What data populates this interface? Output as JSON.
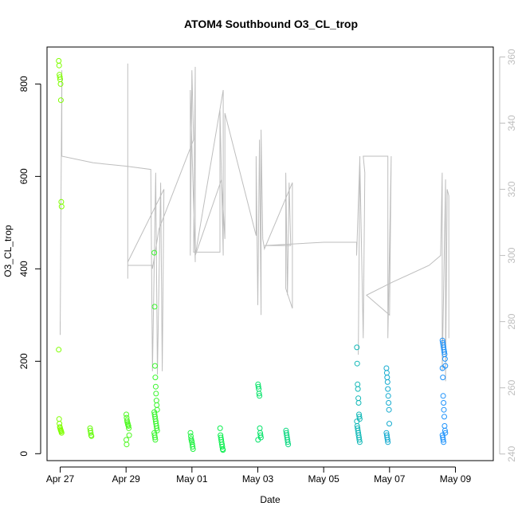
{
  "chart_data": {
    "type": "scatter",
    "title": "ATOM4 Southbound O3_CL_trop",
    "xlabel": "Date",
    "ylabel": "O3_CL_trop",
    "x_ticks": [
      "Apr 27",
      "Apr 29",
      "May 01",
      "May 03",
      "May 05",
      "May 07",
      "May 09"
    ],
    "y_ticks": [
      0,
      200,
      400,
      600,
      800
    ],
    "y2_ticks": [
      240,
      260,
      280,
      300,
      320,
      340,
      360
    ],
    "xlim": [
      26.6,
      40.15
    ],
    "ylim": [
      -15,
      880
    ],
    "y2lim": [
      238,
      363
    ],
    "grid": false,
    "legend": "none",
    "colors": {
      "axis": "#000000",
      "right_axis": "#bebebe",
      "trajectory_line": "#bebebe",
      "point_start": "#7fff00",
      "point_middle": "#00ee55",
      "point_end": "#1e90ff"
    },
    "series": [
      {
        "type": "scatter",
        "axis": "left",
        "clusters": [
          {
            "x": 27.0,
            "values": [
              850,
              840,
              820,
              815,
              810,
              800,
              765,
              545,
              535,
              225,
              75,
              65,
              58,
              55,
              52,
              50,
              48,
              45
            ]
          },
          {
            "x": 27.95,
            "values": [
              55,
              50,
              45,
              40,
              38
            ]
          },
          {
            "x": 29.05,
            "values": [
              85,
              78,
              72,
              68,
              65,
              62,
              60,
              55,
              40,
              30,
              20
            ]
          },
          {
            "x": 29.9,
            "values": [
              435,
              318,
              190,
              165,
              145,
              130,
              115,
              105,
              95,
              90,
              85,
              80,
              75,
              70,
              65,
              60,
              55,
              50,
              45,
              40,
              35,
              30
            ]
          },
          {
            "x": 31.0,
            "values": [
              45,
              38,
              32,
              28,
              25,
              20,
              15,
              10
            ]
          },
          {
            "x": 31.9,
            "values": [
              55,
              40,
              35,
              30,
              25,
              20,
              15,
              10,
              8
            ]
          },
          {
            "x": 33.05,
            "values": [
              150,
              145,
              140,
              130,
              125,
              55,
              45,
              40,
              35,
              30
            ]
          },
          {
            "x": 33.9,
            "values": [
              50,
              45,
              40,
              35,
              30,
              25,
              20
            ]
          },
          {
            "x": 36.05,
            "values": [
              230,
              195,
              150,
              140,
              120,
              110,
              85,
              80,
              75,
              70,
              60,
              55,
              50,
              45,
              40,
              35,
              30,
              25
            ]
          },
          {
            "x": 36.95,
            "values": [
              185,
              175,
              165,
              155,
              140,
              125,
              110,
              95,
              65,
              45,
              40,
              35,
              30,
              25
            ]
          },
          {
            "x": 38.65,
            "values": [
              245,
              240,
              235,
              230,
              225,
              220,
              215,
              205,
              190,
              185,
              165,
              125,
              110,
              95,
              80,
              60,
              50,
              45,
              40,
              35,
              30,
              25
            ]
          }
        ]
      },
      {
        "type": "line",
        "axis": "right",
        "points": [
          [
            27.0,
            280
          ],
          [
            27.0,
            276
          ],
          [
            27.05,
            356
          ],
          [
            27.05,
            330
          ],
          [
            28.0,
            328
          ],
          [
            29.0,
            327
          ],
          [
            29.75,
            326
          ],
          [
            29.8,
            265
          ],
          [
            29.9,
            325
          ],
          [
            29.95,
            264
          ],
          [
            30.05,
            322
          ],
          [
            30.1,
            265
          ],
          [
            30.15,
            320
          ],
          [
            29.05,
            298
          ],
          [
            29.05,
            358
          ],
          [
            29.05,
            293
          ],
          [
            29.05,
            297
          ],
          [
            29.8,
            297
          ],
          [
            29.8,
            296
          ],
          [
            30.0,
            308
          ],
          [
            31.05,
            335
          ],
          [
            31.0,
            356
          ],
          [
            30.95,
            300
          ],
          [
            30.95,
            350
          ],
          [
            31.1,
            298
          ],
          [
            31.1,
            357
          ],
          [
            31.05,
            302
          ],
          [
            31.05,
            301
          ],
          [
            31.85,
            301
          ],
          [
            31.85,
            344
          ],
          [
            31.95,
            300
          ],
          [
            31.95,
            350
          ],
          [
            31.1,
            300
          ],
          [
            31.9,
            323
          ],
          [
            32.0,
            305
          ],
          [
            32.0,
            343
          ],
          [
            32.95,
            306
          ],
          [
            32.95,
            330
          ],
          [
            33.0,
            285
          ],
          [
            33.05,
            335
          ],
          [
            33.1,
            282
          ],
          [
            33.1,
            338
          ],
          [
            33.15,
            305
          ],
          [
            33.2,
            302
          ],
          [
            34.05,
            322
          ],
          [
            34.05,
            284
          ],
          [
            33.85,
            290
          ],
          [
            33.85,
            325
          ],
          [
            33.9,
            288
          ],
          [
            33.95,
            322
          ],
          [
            34.0,
            303
          ],
          [
            33.2,
            303
          ],
          [
            35.0,
            304
          ],
          [
            36.0,
            304
          ],
          [
            36.0,
            300
          ],
          [
            36.1,
            330
          ],
          [
            36.05,
            270
          ],
          [
            36.1,
            328
          ],
          [
            36.2,
            275
          ],
          [
            36.25,
            325
          ],
          [
            36.2,
            330
          ],
          [
            36.95,
            330
          ],
          [
            36.95,
            275
          ],
          [
            37.05,
            330
          ],
          [
            37.0,
            282
          ],
          [
            36.3,
            288
          ],
          [
            37.1,
            292
          ],
          [
            38.2,
            297
          ],
          [
            38.55,
            300
          ],
          [
            38.6,
            325
          ],
          [
            38.6,
            265
          ],
          [
            38.7,
            323
          ],
          [
            38.7,
            262
          ],
          [
            38.75,
            320
          ],
          [
            38.8,
            318
          ],
          [
            38.8,
            275
          ]
        ]
      }
    ]
  }
}
